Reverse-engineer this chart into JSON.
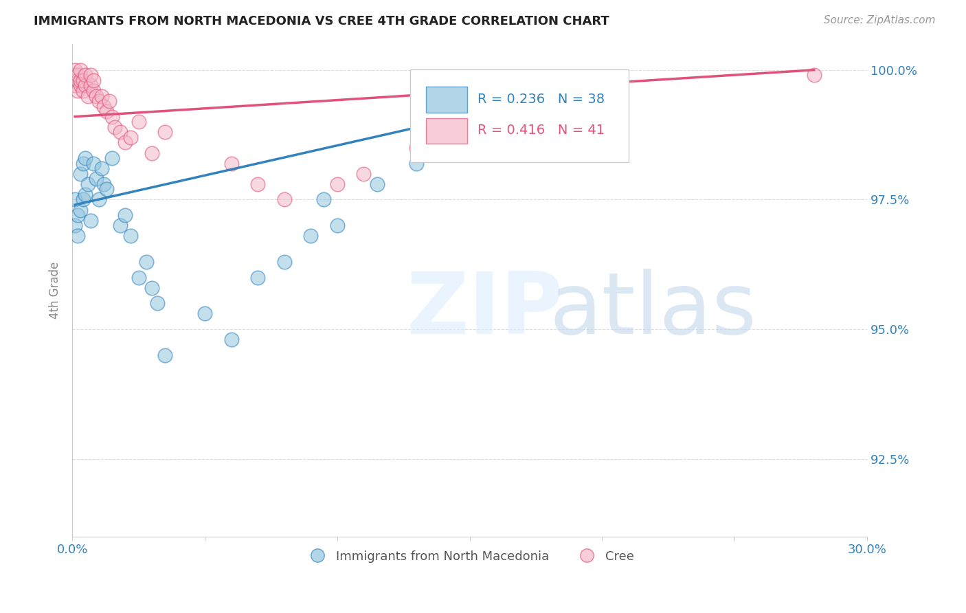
{
  "title": "IMMIGRANTS FROM NORTH MACEDONIA VS CREE 4TH GRADE CORRELATION CHART",
  "source": "Source: ZipAtlas.com",
  "ylabel": "4th Grade",
  "yaxis_labels": [
    "100.0%",
    "97.5%",
    "95.0%",
    "92.5%"
  ],
  "yaxis_values": [
    1.0,
    0.975,
    0.95,
    0.925
  ],
  "xaxis_values": [
    0.0,
    0.05,
    0.1,
    0.15,
    0.2,
    0.25,
    0.3
  ],
  "legend_blue_label": "Immigrants from North Macedonia",
  "legend_pink_label": "Cree",
  "blue_color": "#92c5de",
  "pink_color": "#f4b8c8",
  "trendline_blue_color": "#3182bd",
  "trendline_pink_color": "#e0527a",
  "blue_x": [
    0.001,
    0.001,
    0.002,
    0.002,
    0.003,
    0.003,
    0.004,
    0.004,
    0.005,
    0.005,
    0.006,
    0.007,
    0.008,
    0.009,
    0.01,
    0.011,
    0.012,
    0.013,
    0.015,
    0.018,
    0.02,
    0.022,
    0.025,
    0.028,
    0.03,
    0.032,
    0.035,
    0.05,
    0.06,
    0.07,
    0.08,
    0.09,
    0.095,
    0.1,
    0.115,
    0.13,
    0.16,
    0.2
  ],
  "blue_y": [
    0.97,
    0.975,
    0.972,
    0.968,
    0.973,
    0.98,
    0.975,
    0.982,
    0.976,
    0.983,
    0.978,
    0.971,
    0.982,
    0.979,
    0.975,
    0.981,
    0.978,
    0.977,
    0.983,
    0.97,
    0.972,
    0.968,
    0.96,
    0.963,
    0.958,
    0.955,
    0.945,
    0.953,
    0.948,
    0.96,
    0.963,
    0.968,
    0.975,
    0.97,
    0.978,
    0.982,
    0.99,
    0.995
  ],
  "pink_x": [
    0.001,
    0.001,
    0.001,
    0.002,
    0.002,
    0.002,
    0.003,
    0.003,
    0.003,
    0.004,
    0.004,
    0.005,
    0.005,
    0.006,
    0.007,
    0.007,
    0.008,
    0.008,
    0.009,
    0.01,
    0.011,
    0.012,
    0.013,
    0.014,
    0.015,
    0.016,
    0.018,
    0.02,
    0.022,
    0.025,
    0.03,
    0.035,
    0.06,
    0.07,
    0.08,
    0.1,
    0.11,
    0.13,
    0.15,
    0.17,
    0.28
  ],
  "pink_y": [
    0.997,
    0.999,
    1.0,
    0.996,
    0.998,
    0.999,
    0.997,
    0.998,
    1.0,
    0.996,
    0.998,
    0.997,
    0.999,
    0.995,
    0.997,
    0.999,
    0.996,
    0.998,
    0.995,
    0.994,
    0.995,
    0.993,
    0.992,
    0.994,
    0.991,
    0.989,
    0.988,
    0.986,
    0.987,
    0.99,
    0.984,
    0.988,
    0.982,
    0.978,
    0.975,
    0.978,
    0.98,
    0.985,
    0.989,
    0.992,
    0.999
  ],
  "xlim": [
    0.0,
    0.3
  ],
  "ylim": [
    0.91,
    1.005
  ],
  "background_color": "#ffffff",
  "grid_color": "#dddddd",
  "blue_trendline_x": [
    0.001,
    0.2
  ],
  "blue_trendline_y": [
    0.974,
    0.997
  ],
  "pink_trendline_x": [
    0.001,
    0.28
  ],
  "pink_trendline_y": [
    0.991,
    1.0
  ]
}
